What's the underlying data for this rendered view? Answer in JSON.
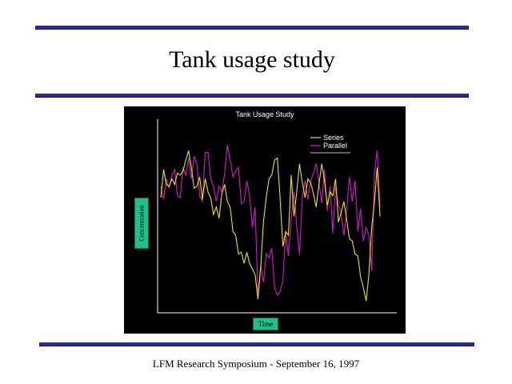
{
  "slide": {
    "title": "Tank usage study",
    "footer": "LFM Research Symposium -  September 16, 1997"
  },
  "colors": {
    "rule": "#2b2b9a",
    "label_box": "#1fbf8e",
    "series": "#e8e800",
    "parallel": "#d814d8"
  },
  "chart_data": {
    "type": "line",
    "title": "Tank Usage Study",
    "xlabel": "Time",
    "ylabel": "Concentration",
    "legend_position": "top-right",
    "grid": false,
    "x": [
      1,
      2,
      3,
      4,
      5,
      6,
      7,
      8,
      9,
      10,
      11,
      12,
      13,
      14,
      15,
      16,
      17,
      18,
      19,
      20,
      21,
      22,
      23,
      24,
      25,
      26,
      27,
      28,
      29,
      30,
      31,
      32,
      33,
      34,
      35,
      36,
      37,
      38,
      39,
      40,
      41,
      42,
      43,
      44,
      45,
      46,
      47,
      48,
      49,
      50,
      51,
      52,
      53,
      54,
      55,
      56,
      57,
      58,
      59,
      60,
      61,
      62,
      63,
      64,
      65,
      66,
      67,
      68,
      69,
      70,
      71,
      72,
      73,
      74,
      75,
      76,
      77,
      78,
      79,
      80
    ],
    "ylim": [
      0,
      100
    ],
    "series": [
      {
        "name": "Series",
        "color": "#e8e800",
        "values": [
          60,
          75,
          67,
          66,
          70,
          67,
          73,
          72,
          74,
          80,
          85,
          76,
          65,
          66,
          71,
          59,
          70,
          63,
          60,
          51,
          55,
          49,
          62,
          67,
          58,
          55,
          42,
          40,
          30,
          31,
          25,
          31,
          25,
          22,
          19,
          6,
          23,
          47,
          60,
          70,
          72,
          80,
          81,
          60,
          34,
          42,
          40,
          72,
          50,
          63,
          78,
          68,
          60,
          70,
          68,
          62,
          55,
          67,
          78,
          69,
          56,
          63,
          61,
          70,
          47,
          52,
          58,
          48,
          38,
          37,
          30,
          29,
          18,
          12,
          5,
          19,
          44,
          58,
          76,
          50
        ]
      },
      {
        "name": "Parallel",
        "color": "#d814d8",
        "values": [
          66,
          59,
          70,
          65,
          72,
          75,
          61,
          60,
          76,
          72,
          81,
          70,
          82,
          78,
          61,
          58,
          84,
          84,
          70,
          66,
          58,
          66,
          63,
          73,
          88,
          80,
          71,
          74,
          76,
          57,
          58,
          69,
          61,
          44,
          55,
          8,
          24,
          15,
          30,
          28,
          33,
          12,
          8,
          10,
          16,
          42,
          29,
          49,
          63,
          45,
          30,
          60,
          69,
          59,
          69,
          73,
          78,
          68,
          57,
          75,
          53,
          66,
          41,
          66,
          56,
          52,
          40,
          53,
          71,
          58,
          69,
          42,
          54,
          37,
          44,
          40,
          21,
          73,
          85,
          55
        ]
      }
    ]
  }
}
